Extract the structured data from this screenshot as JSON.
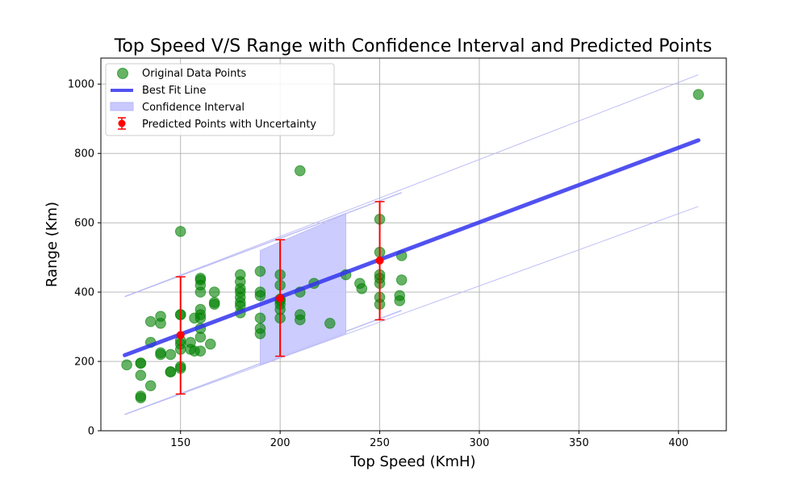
{
  "chart_data": {
    "type": "scatter",
    "title": "Top Speed V/S Range with Confidence Interval and Predicted Points",
    "xlabel": "Top Speed (KmH)",
    "ylabel": "Range (Km)",
    "xlim": [
      110,
      424
    ],
    "ylim": [
      0,
      1075
    ],
    "xticks": [
      150,
      200,
      250,
      300,
      350,
      400
    ],
    "yticks": [
      0,
      200,
      400,
      600,
      800,
      1000
    ],
    "grid": true,
    "legend_position": "top-left",
    "legend": [
      "Original Data Points",
      "Best Fit Line",
      "Confidence Interval",
      "Predicted Points with Uncertainty"
    ],
    "colors": {
      "points": "#008000",
      "fit_line": "#3333ee",
      "confidence_fill": "#c9c9ff",
      "confidence_edge": "#b8b8f5",
      "predicted": "#ff0000"
    },
    "series": [
      {
        "name": "Original Data Points",
        "points": [
          [
            123,
            190
          ],
          [
            130,
            195
          ],
          [
            130,
            195
          ],
          [
            130,
            160
          ],
          [
            130,
            95
          ],
          [
            130,
            100
          ],
          [
            135,
            315
          ],
          [
            135,
            255
          ],
          [
            135,
            130
          ],
          [
            140,
            330
          ],
          [
            140,
            310
          ],
          [
            140,
            225
          ],
          [
            140,
            220
          ],
          [
            145,
            220
          ],
          [
            145,
            170
          ],
          [
            145,
            170
          ],
          [
            150,
            575
          ],
          [
            150,
            335
          ],
          [
            150,
            335
          ],
          [
            150,
            260
          ],
          [
            150,
            250
          ],
          [
            150,
            235
          ],
          [
            150,
            185
          ],
          [
            150,
            180
          ],
          [
            155,
            255
          ],
          [
            155,
            235
          ],
          [
            157,
            325
          ],
          [
            157,
            230
          ],
          [
            160,
            440
          ],
          [
            160,
            435
          ],
          [
            160,
            420
          ],
          [
            160,
            400
          ],
          [
            160,
            350
          ],
          [
            160,
            335
          ],
          [
            160,
            325
          ],
          [
            160,
            295
          ],
          [
            160,
            270
          ],
          [
            160,
            230
          ],
          [
            165,
            250
          ],
          [
            167,
            400
          ],
          [
            167,
            370
          ],
          [
            167,
            365
          ],
          [
            180,
            450
          ],
          [
            180,
            430
          ],
          [
            180,
            410
          ],
          [
            180,
            400
          ],
          [
            180,
            385
          ],
          [
            180,
            370
          ],
          [
            180,
            360
          ],
          [
            180,
            340
          ],
          [
            190,
            460
          ],
          [
            190,
            400
          ],
          [
            190,
            390
          ],
          [
            190,
            325
          ],
          [
            190,
            295
          ],
          [
            190,
            280
          ],
          [
            200,
            450
          ],
          [
            200,
            420
          ],
          [
            200,
            380
          ],
          [
            200,
            375
          ],
          [
            200,
            365
          ],
          [
            200,
            350
          ],
          [
            200,
            325
          ],
          [
            210,
            750
          ],
          [
            210,
            400
          ],
          [
            210,
            335
          ],
          [
            210,
            320
          ],
          [
            217,
            425
          ],
          [
            225,
            310
          ],
          [
            233,
            450
          ],
          [
            240,
            425
          ],
          [
            241,
            410
          ],
          [
            250,
            610
          ],
          [
            250,
            515
          ],
          [
            250,
            450
          ],
          [
            250,
            440
          ],
          [
            250,
            425
          ],
          [
            250,
            385
          ],
          [
            250,
            365
          ],
          [
            260,
            390
          ],
          [
            260,
            375
          ],
          [
            261,
            505
          ],
          [
            261,
            435
          ],
          [
            410,
            970
          ]
        ]
      },
      {
        "name": "Best Fit Line",
        "x": [
          122,
          410
        ],
        "y": [
          218,
          838
        ]
      },
      {
        "name": "Confidence Interval",
        "x_range": [
          190,
          233
        ],
        "lower": [
          190,
          281
        ],
        "upper": [
          520,
          626
        ]
      },
      {
        "name": "Predicted Points with Uncertainty",
        "points": [
          {
            "x": 150,
            "y": 276,
            "err_low": 106,
            "err_high": 444
          },
          {
            "x": 200,
            "y": 382,
            "err_low": 215,
            "err_high": 551
          },
          {
            "x": 250,
            "y": 491,
            "err_low": 320,
            "err_high": 661
          }
        ]
      }
    ],
    "extra_bands": {
      "band_inner": {
        "x": [
          122,
          261
        ],
        "lower": [
          47,
          347
        ],
        "upper": [
          387,
          687
        ]
      },
      "band_outer": {
        "x": [
          122,
          410
        ],
        "lower": [
          47,
          647
        ],
        "upper": [
          387,
          1027
        ]
      }
    }
  }
}
